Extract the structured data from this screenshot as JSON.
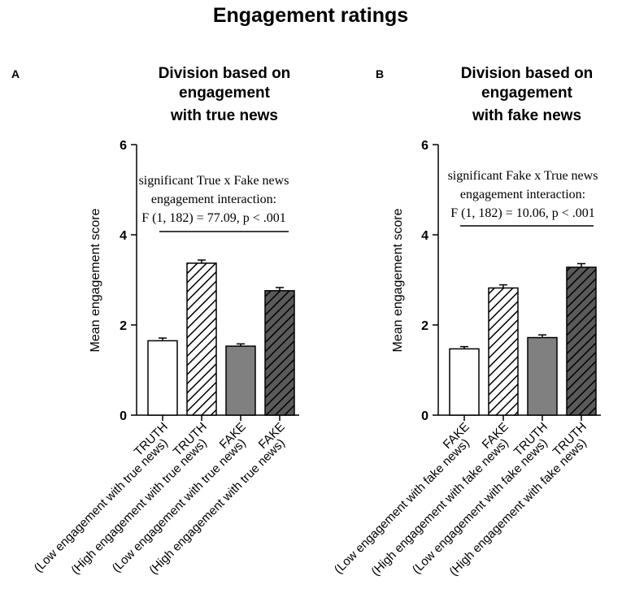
{
  "figure_title": "Engagement ratings",
  "colors": {
    "ink": "#000000",
    "bar_white": "#ffffff",
    "bar_gray": "#808080",
    "hatch_dark_bg": "#5a5a5a"
  },
  "chart_data": [
    {
      "type": "bar",
      "panel_label": "A",
      "title_lines": [
        "Division based on",
        "engagement",
        "with true news"
      ],
      "ylabel": "Mean engagement score",
      "ylim": [
        0,
        6
      ],
      "yticks": [
        "0",
        "2",
        "4",
        "6"
      ],
      "annotation_lines": [
        "significant True x Fake news",
        "engagement interaction:",
        "F (1, 182) = 77.09, p < .001"
      ],
      "categories": [
        {
          "line1": "TRUTH",
          "line2": "(Low engagement with true news)"
        },
        {
          "line1": "TRUTH",
          "line2": "(High engagement with true news)"
        },
        {
          "line1": "FAKE",
          "line2": "(Low engagement with true news)"
        },
        {
          "line1": "FAKE",
          "line2": "(High engagement with true news)"
        }
      ],
      "values": [
        1.65,
        3.37,
        1.53,
        2.76
      ],
      "errors": [
        0.06,
        0.07,
        0.05,
        0.07
      ],
      "fills": [
        "white",
        "hatch-light",
        "gray",
        "hatch-dark"
      ]
    },
    {
      "type": "bar",
      "panel_label": "B",
      "title_lines": [
        "Division based on",
        "engagement",
        "with fake news"
      ],
      "ylabel": "Mean engagement score",
      "ylim": [
        0,
        6
      ],
      "yticks": [
        "0",
        "2",
        "4",
        "6"
      ],
      "annotation_lines": [
        "significant Fake x True news",
        "engagement interaction:",
        "F (1, 182) = 10.06, p < .001"
      ],
      "categories": [
        {
          "line1": "FAKE",
          "line2": "(Low engagement with fake news)"
        },
        {
          "line1": "FAKE",
          "line2": "(High engagement with fake news)"
        },
        {
          "line1": "TRUTH",
          "line2": "(Low engagement with fake news)"
        },
        {
          "line1": "TRUTH",
          "line2": "(High engagement with fake news)"
        }
      ],
      "values": [
        1.47,
        2.82,
        1.72,
        3.28
      ],
      "errors": [
        0.05,
        0.07,
        0.06,
        0.08
      ],
      "fills": [
        "white",
        "hatch-light",
        "gray",
        "hatch-dark"
      ]
    }
  ]
}
